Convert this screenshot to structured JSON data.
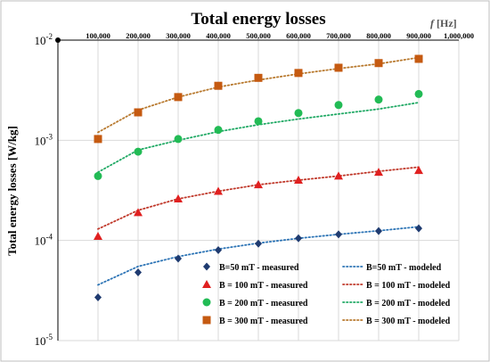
{
  "chart_data": {
    "type": "scatter",
    "title": "Total energy losses",
    "xlabel_italic": "f",
    "xlabel_unit": "[Hz]",
    "ylabel": "Total energy losses [W/kg]",
    "x_scale": "linear",
    "y_scale": "log",
    "xlim": [
      0,
      1000000
    ],
    "ylim": [
      1e-05,
      0.01
    ],
    "x_axis_position": "top",
    "x_ticks": [
      100000,
      200000,
      300000,
      400000,
      500000,
      600000,
      700000,
      800000,
      900000,
      1000000
    ],
    "x_tick_labels": [
      "100,000",
      "200,000",
      "300,000",
      "400,000",
      "500,000",
      "600,000",
      "700,000",
      "800,000",
      "900,000",
      "1,000,000"
    ],
    "y_ticks": [
      {
        "value": 0.01,
        "base": "10",
        "exp": "-2"
      },
      {
        "value": 0.001,
        "base": "10",
        "exp": "-3"
      },
      {
        "value": 0.0001,
        "base": "10",
        "exp": "-4"
      },
      {
        "value": 1e-05,
        "base": "10",
        "exp": "-5"
      }
    ],
    "grid": true,
    "legend_position": "bottom-right",
    "x": [
      100000,
      200000,
      300000,
      400000,
      500000,
      600000,
      700000,
      800000,
      900000
    ],
    "series": [
      {
        "name": "B=50 mT - measured",
        "kind": "measured",
        "marker": "diamond",
        "color": "#1f3b70",
        "values": [
          2.7e-05,
          4.8e-05,
          6.6e-05,
          8e-05,
          9.3e-05,
          0.000105,
          0.000115,
          0.000124,
          0.000132
        ]
      },
      {
        "name": "B=50 mT - modeled",
        "kind": "modeled",
        "color": "#2e75b6",
        "values": [
          3.6e-05,
          5.5e-05,
          6.9e-05,
          8.2e-05,
          9.4e-05,
          0.000105,
          0.000115,
          0.000125,
          0.000137
        ]
      },
      {
        "name": "B = 100 mT - measured",
        "kind": "measured",
        "marker": "triangle",
        "color": "#e02020",
        "values": [
          0.00011,
          0.00019,
          0.00026,
          0.00031,
          0.00036,
          0.0004,
          0.00044,
          0.00048,
          0.0005
        ]
      },
      {
        "name": "B = 100 mT - modeled",
        "kind": "modeled",
        "color": "#c0392b",
        "values": [
          0.00013,
          0.0002,
          0.00026,
          0.00031,
          0.00036,
          0.0004,
          0.00044,
          0.00049,
          0.00054
        ]
      },
      {
        "name": "B = 200 mT - measured",
        "kind": "measured",
        "marker": "circle",
        "color": "#22bb55",
        "values": [
          0.00044,
          0.00077,
          0.00103,
          0.00127,
          0.00155,
          0.00187,
          0.00225,
          0.00255,
          0.0029
        ]
      },
      {
        "name": "B = 200 mT - modeled",
        "kind": "modeled",
        "color": "#22aa66",
        "values": [
          0.00048,
          0.0008,
          0.001,
          0.00122,
          0.00143,
          0.00163,
          0.00183,
          0.00205,
          0.00238
        ]
      },
      {
        "name": "B = 300 mT - measured",
        "kind": "measured",
        "marker": "square",
        "color": "#c55a11",
        "values": [
          0.00103,
          0.0019,
          0.0027,
          0.0035,
          0.0042,
          0.0047,
          0.0053,
          0.0059,
          0.0065
        ]
      },
      {
        "name": "B = 300 mT - modeled",
        "kind": "modeled",
        "color": "#b8792e",
        "values": [
          0.0012,
          0.002,
          0.0027,
          0.0034,
          0.004,
          0.0046,
          0.0052,
          0.0058,
          0.0067
        ]
      }
    ]
  }
}
